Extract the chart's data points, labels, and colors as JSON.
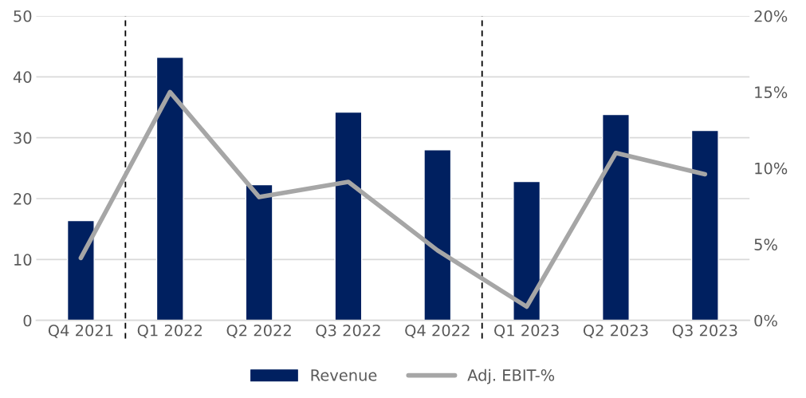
{
  "chart_data": {
    "type": "bar",
    "categories": [
      "Q4 2021",
      "Q1 2022",
      "Q2 2022",
      "Q3 2022",
      "Q4 2022",
      "Q1 2023",
      "Q2 2023",
      "Q3 2023"
    ],
    "series": [
      {
        "name": "Revenue",
        "color": "#002060",
        "values": [
          16.4,
          43.2,
          22.3,
          34.2,
          28.0,
          22.8,
          33.8,
          31.2
        ]
      },
      {
        "name": "Adj. EBIT-%",
        "type": "line",
        "axis": "y2",
        "color": "#a6a6a6",
        "values": [
          4.1,
          15.0,
          8.1,
          9.1,
          4.6,
          0.9,
          11.0,
          9.6
        ]
      }
    ],
    "ylim": [
      0,
      50
    ],
    "yticks": [
      0,
      10,
      20,
      30,
      40,
      50
    ],
    "y2lim": [
      0,
      20
    ],
    "y2ticks": [
      {
        "value": 0,
        "label": "0%"
      },
      {
        "value": 5,
        "label": "5%"
      },
      {
        "value": 10,
        "label": "10%"
      },
      {
        "value": 15,
        "label": "15%"
      },
      {
        "value": 20,
        "label": "20%"
      }
    ],
    "grid": "y",
    "legend": "bottom",
    "marker": "none",
    "line_style": "solid"
  }
}
